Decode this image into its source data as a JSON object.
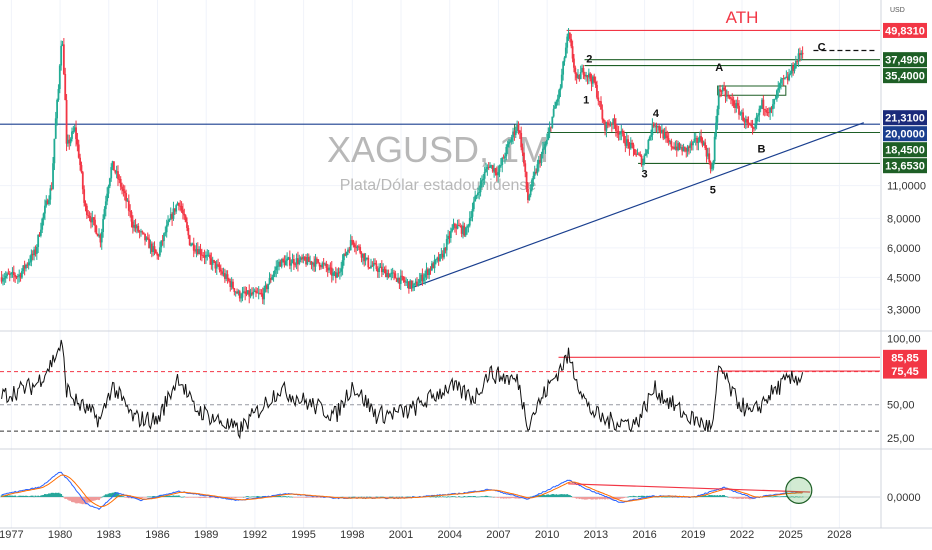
{
  "chart_data": {
    "type": "candlestick",
    "symbol": "XAGUSD, 1M",
    "description": "Plata/Dólar estadounidense",
    "currency": "USD",
    "ath_label": "ATH",
    "y_scale": "log",
    "x_range": [
      1976.3,
      2030.5
    ],
    "y_range": [
      2.75,
      62
    ],
    "y_ticks": [
      {
        "value": 3.3,
        "label": "3,3000"
      },
      {
        "value": 4.5,
        "label": "4,5000"
      },
      {
        "value": 6.0,
        "label": "6,0000"
      },
      {
        "value": 8.0,
        "label": "8,0000"
      },
      {
        "value": 11.0,
        "label": "11,0000"
      }
    ],
    "x_ticks": [
      {
        "value": 1977,
        "label": "1977"
      },
      {
        "value": 1980,
        "label": "1980"
      },
      {
        "value": 1983,
        "label": "1983"
      },
      {
        "value": 1986,
        "label": "1986"
      },
      {
        "value": 1989,
        "label": "1989"
      },
      {
        "value": 1992,
        "label": "1992"
      },
      {
        "value": 1995,
        "label": "1995"
      },
      {
        "value": 1998,
        "label": "1998"
      },
      {
        "value": 2001,
        "label": "2001"
      },
      {
        "value": 2004,
        "label": "2004"
      },
      {
        "value": 2007,
        "label": "2007"
      },
      {
        "value": 2010,
        "label": "2010"
      },
      {
        "value": 2013,
        "label": "2013"
      },
      {
        "value": 2016,
        "label": "2016"
      },
      {
        "value": 2019,
        "label": "2019"
      },
      {
        "value": 2022,
        "label": "2022"
      },
      {
        "value": 2025,
        "label": "2025"
      },
      {
        "value": 2028,
        "label": "2028"
      }
    ],
    "price_anchors": [
      [
        1976.0,
        4.5
      ],
      [
        1977.5,
        4.6
      ],
      [
        1978.5,
        5.8
      ],
      [
        1979.5,
        11
      ],
      [
        1979.9,
        28
      ],
      [
        1980.1,
        48
      ],
      [
        1980.4,
        16
      ],
      [
        1980.9,
        19
      ],
      [
        1981.5,
        9
      ],
      [
        1982.5,
        6.5
      ],
      [
        1983.2,
        13.5
      ],
      [
        1984.5,
        7.5
      ],
      [
        1986.0,
        5.5
      ],
      [
        1987.3,
        9.5
      ],
      [
        1988.0,
        6.3
      ],
      [
        1989.5,
        5.1
      ],
      [
        1991.0,
        3.8
      ],
      [
        1992.5,
        3.8
      ],
      [
        1993.5,
        5.2
      ],
      [
        1994.5,
        5.3
      ],
      [
        1996.0,
        5.2
      ],
      [
        1997.0,
        4.5
      ],
      [
        1998.0,
        6.5
      ],
      [
        1999.0,
        5.1
      ],
      [
        2001.8,
        4.1
      ],
      [
        2003.5,
        5.5
      ],
      [
        2004.3,
        7.5
      ],
      [
        2005.0,
        7.0
      ],
      [
        2006.4,
        13.5
      ],
      [
        2007.0,
        12.5
      ],
      [
        2008.2,
        20
      ],
      [
        2008.8,
        9.5
      ],
      [
        2010.0,
        17
      ],
      [
        2010.8,
        28
      ],
      [
        2011.3,
        48
      ],
      [
        2011.8,
        30
      ],
      [
        2012.2,
        34
      ],
      [
        2012.9,
        30
      ],
      [
        2013.5,
        19.5
      ],
      [
        2014.0,
        20.5
      ],
      [
        2014.8,
        17
      ],
      [
        2015.9,
        13.8
      ],
      [
        2016.6,
        20.5
      ],
      [
        2017.5,
        16.5
      ],
      [
        2018.5,
        15.5
      ],
      [
        2019.5,
        17.5
      ],
      [
        2020.2,
        12.5
      ],
      [
        2020.6,
        28.5
      ],
      [
        2021.0,
        26.5
      ],
      [
        2021.5,
        24.5
      ],
      [
        2022.4,
        19.5
      ],
      [
        2022.7,
        18.3
      ],
      [
        2023.2,
        24.5
      ],
      [
        2023.8,
        22.5
      ],
      [
        2024.4,
        30
      ],
      [
        2024.8,
        31
      ],
      [
        2025.4,
        37.5
      ],
      [
        2025.7,
        41
      ]
    ],
    "levels": [
      {
        "price": 49.831,
        "label": "49,8310",
        "color": "#f23645",
        "kind": "ATH"
      },
      {
        "price": 37.499,
        "label": "37,4990",
        "color": "#1e5f26",
        "kind": "resistance"
      },
      {
        "price": 35.4,
        "label": "35,4000",
        "color": "#1e5f26",
        "kind": "resistance"
      },
      {
        "price": 21.31,
        "label": "21,3100",
        "color": "#1a2a7a",
        "kind": "current-price"
      },
      {
        "price": 20.0,
        "label": "20,0000",
        "color": "#1a3f8f",
        "kind": "support"
      },
      {
        "price": 18.45,
        "label": "18,4500",
        "color": "#1e5f26",
        "kind": "support"
      },
      {
        "price": 13.653,
        "label": "13,6530",
        "color": "#1e5f26",
        "kind": "support"
      }
    ],
    "wave_labels": [
      {
        "label": "1",
        "x": 2012.4,
        "y": 24.5
      },
      {
        "label": "2",
        "x": 2012.6,
        "y": 36.5
      },
      {
        "label": "3",
        "x": 2016.0,
        "y": 11.9
      },
      {
        "label": "4",
        "x": 2016.7,
        "y": 21.5
      },
      {
        "label": "5",
        "x": 2020.2,
        "y": 10.2
      },
      {
        "label": "A",
        "x": 2020.6,
        "y": 33.5
      },
      {
        "label": "B",
        "x": 2023.2,
        "y": 15.2
      },
      {
        "label": "C",
        "x": 2026.9,
        "y": 41
      }
    ],
    "trendline": {
      "x": [
        2001.8,
        2029.5
      ],
      "y": [
        4.1,
        20.3
      ]
    },
    "rsi": {
      "y_range": [
        18,
        102
      ],
      "ticks": [
        {
          "value": 100,
          "label": "100,00"
        },
        {
          "value": 50,
          "label": "50,00"
        },
        {
          "value": 25,
          "label": "25,00"
        }
      ],
      "levels": [
        {
          "value": 85.85,
          "label": "85,85",
          "color": "#f23645"
        },
        {
          "value": 75.45,
          "label": "75,45",
          "color": "#f23645"
        }
      ],
      "anchors": [
        [
          1976.0,
          55
        ],
        [
          1978.5,
          65
        ],
        [
          1979.5,
          82
        ],
        [
          1980.1,
          97
        ],
        [
          1980.4,
          62
        ],
        [
          1981.0,
          52
        ],
        [
          1982.5,
          38
        ],
        [
          1983.2,
          65
        ],
        [
          1984.5,
          40
        ],
        [
          1986.0,
          38
        ],
        [
          1987.3,
          72
        ],
        [
          1988.2,
          48
        ],
        [
          1991.0,
          30
        ],
        [
          1993.5,
          62
        ],
        [
          1995.5,
          50
        ],
        [
          1997.0,
          42
        ],
        [
          1998.0,
          65
        ],
        [
          1999.5,
          42
        ],
        [
          2001.5,
          45
        ],
        [
          2004.0,
          64
        ],
        [
          2005.5,
          55
        ],
        [
          2006.4,
          74
        ],
        [
          2008.2,
          68
        ],
        [
          2008.8,
          36
        ],
        [
          2010.0,
          62
        ],
        [
          2011.3,
          87
        ],
        [
          2012.5,
          48
        ],
        [
          2013.5,
          38
        ],
        [
          2015.5,
          36
        ],
        [
          2016.6,
          62
        ],
        [
          2018.5,
          42
        ],
        [
          2020.2,
          32
        ],
        [
          2020.6,
          80
        ],
        [
          2021.5,
          56
        ],
        [
          2022.6,
          42
        ],
        [
          2023.5,
          55
        ],
        [
          2024.5,
          66
        ],
        [
          2025.7,
          72
        ]
      ]
    },
    "macd": {
      "ticks": [
        {
          "value": 0,
          "label": "0,0000"
        }
      ],
      "macd_anchors": [
        [
          1976.0,
          0.1
        ],
        [
          1978.8,
          0.9
        ],
        [
          1980.0,
          2.3
        ],
        [
          1980.6,
          1.4
        ],
        [
          1981.6,
          -0.6
        ],
        [
          1982.4,
          -1.1
        ],
        [
          1983.5,
          0.4
        ],
        [
          1985.0,
          -0.3
        ],
        [
          1987.3,
          0.5
        ],
        [
          1991.0,
          -0.3
        ],
        [
          1994.0,
          0.3
        ],
        [
          1997.0,
          -0.1
        ],
        [
          2001.0,
          -0.1
        ],
        [
          2004.5,
          0.3
        ],
        [
          2006.5,
          0.7
        ],
        [
          2008.8,
          -0.2
        ],
        [
          2010.0,
          0.6
        ],
        [
          2011.3,
          1.55
        ],
        [
          2012.5,
          0.7
        ],
        [
          2014.5,
          -0.5
        ],
        [
          2016.5,
          0.1
        ],
        [
          2019.0,
          0.0
        ],
        [
          2020.9,
          0.85
        ],
        [
          2022.7,
          -0.1
        ],
        [
          2024.5,
          0.35
        ],
        [
          2025.7,
          0.4
        ]
      ],
      "trendline": {
        "x": [
          2011.3,
          2026.2
        ],
        "y": [
          1.2,
          0.45
        ]
      }
    }
  }
}
